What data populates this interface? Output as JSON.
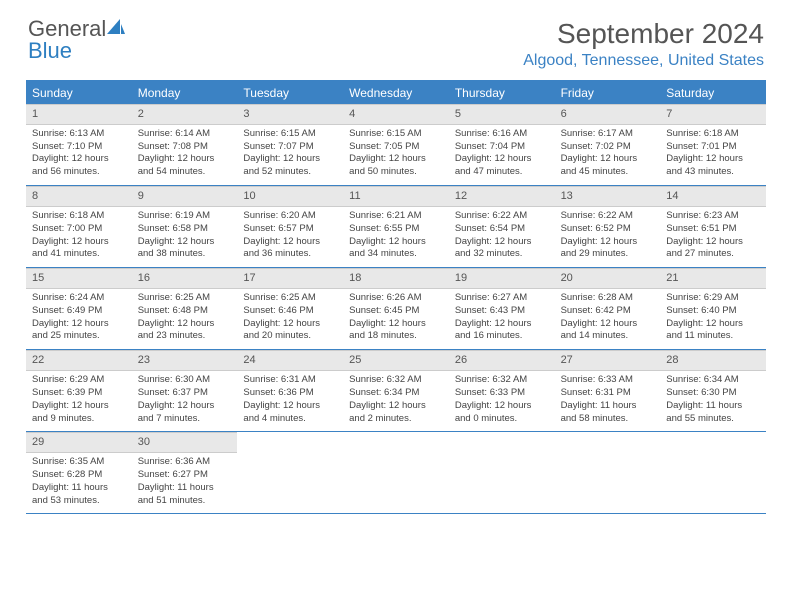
{
  "logo": {
    "text1": "General",
    "text2": "Blue"
  },
  "title": "September 2024",
  "location": "Algood, Tennessee, United States",
  "colors": {
    "accent": "#3b82c4",
    "header_bg": "#3b82c4",
    "daynum_bg": "#e8e8e8",
    "text": "#444444",
    "title_text": "#555555"
  },
  "weekdays": [
    "Sunday",
    "Monday",
    "Tuesday",
    "Wednesday",
    "Thursday",
    "Friday",
    "Saturday"
  ],
  "grid": {
    "rows": 5,
    "cols": 7
  },
  "days": [
    {
      "n": "1",
      "sunrise": "6:13 AM",
      "sunset": "7:10 PM",
      "daylight": "12 hours and 56 minutes."
    },
    {
      "n": "2",
      "sunrise": "6:14 AM",
      "sunset": "7:08 PM",
      "daylight": "12 hours and 54 minutes."
    },
    {
      "n": "3",
      "sunrise": "6:15 AM",
      "sunset": "7:07 PM",
      "daylight": "12 hours and 52 minutes."
    },
    {
      "n": "4",
      "sunrise": "6:15 AM",
      "sunset": "7:05 PM",
      "daylight": "12 hours and 50 minutes."
    },
    {
      "n": "5",
      "sunrise": "6:16 AM",
      "sunset": "7:04 PM",
      "daylight": "12 hours and 47 minutes."
    },
    {
      "n": "6",
      "sunrise": "6:17 AM",
      "sunset": "7:02 PM",
      "daylight": "12 hours and 45 minutes."
    },
    {
      "n": "7",
      "sunrise": "6:18 AM",
      "sunset": "7:01 PM",
      "daylight": "12 hours and 43 minutes."
    },
    {
      "n": "8",
      "sunrise": "6:18 AM",
      "sunset": "7:00 PM",
      "daylight": "12 hours and 41 minutes."
    },
    {
      "n": "9",
      "sunrise": "6:19 AM",
      "sunset": "6:58 PM",
      "daylight": "12 hours and 38 minutes."
    },
    {
      "n": "10",
      "sunrise": "6:20 AM",
      "sunset": "6:57 PM",
      "daylight": "12 hours and 36 minutes."
    },
    {
      "n": "11",
      "sunrise": "6:21 AM",
      "sunset": "6:55 PM",
      "daylight": "12 hours and 34 minutes."
    },
    {
      "n": "12",
      "sunrise": "6:22 AM",
      "sunset": "6:54 PM",
      "daylight": "12 hours and 32 minutes."
    },
    {
      "n": "13",
      "sunrise": "6:22 AM",
      "sunset": "6:52 PM",
      "daylight": "12 hours and 29 minutes."
    },
    {
      "n": "14",
      "sunrise": "6:23 AM",
      "sunset": "6:51 PM",
      "daylight": "12 hours and 27 minutes."
    },
    {
      "n": "15",
      "sunrise": "6:24 AM",
      "sunset": "6:49 PM",
      "daylight": "12 hours and 25 minutes."
    },
    {
      "n": "16",
      "sunrise": "6:25 AM",
      "sunset": "6:48 PM",
      "daylight": "12 hours and 23 minutes."
    },
    {
      "n": "17",
      "sunrise": "6:25 AM",
      "sunset": "6:46 PM",
      "daylight": "12 hours and 20 minutes."
    },
    {
      "n": "18",
      "sunrise": "6:26 AM",
      "sunset": "6:45 PM",
      "daylight": "12 hours and 18 minutes."
    },
    {
      "n": "19",
      "sunrise": "6:27 AM",
      "sunset": "6:43 PM",
      "daylight": "12 hours and 16 minutes."
    },
    {
      "n": "20",
      "sunrise": "6:28 AM",
      "sunset": "6:42 PM",
      "daylight": "12 hours and 14 minutes."
    },
    {
      "n": "21",
      "sunrise": "6:29 AM",
      "sunset": "6:40 PM",
      "daylight": "12 hours and 11 minutes."
    },
    {
      "n": "22",
      "sunrise": "6:29 AM",
      "sunset": "6:39 PM",
      "daylight": "12 hours and 9 minutes."
    },
    {
      "n": "23",
      "sunrise": "6:30 AM",
      "sunset": "6:37 PM",
      "daylight": "12 hours and 7 minutes."
    },
    {
      "n": "24",
      "sunrise": "6:31 AM",
      "sunset": "6:36 PM",
      "daylight": "12 hours and 4 minutes."
    },
    {
      "n": "25",
      "sunrise": "6:32 AM",
      "sunset": "6:34 PM",
      "daylight": "12 hours and 2 minutes."
    },
    {
      "n": "26",
      "sunrise": "6:32 AM",
      "sunset": "6:33 PM",
      "daylight": "12 hours and 0 minutes."
    },
    {
      "n": "27",
      "sunrise": "6:33 AM",
      "sunset": "6:31 PM",
      "daylight": "11 hours and 58 minutes."
    },
    {
      "n": "28",
      "sunrise": "6:34 AM",
      "sunset": "6:30 PM",
      "daylight": "11 hours and 55 minutes."
    },
    {
      "n": "29",
      "sunrise": "6:35 AM",
      "sunset": "6:28 PM",
      "daylight": "11 hours and 53 minutes."
    },
    {
      "n": "30",
      "sunrise": "6:36 AM",
      "sunset": "6:27 PM",
      "daylight": "11 hours and 51 minutes."
    }
  ],
  "labels": {
    "sunrise": "Sunrise:",
    "sunset": "Sunset:",
    "daylight": "Daylight:"
  }
}
